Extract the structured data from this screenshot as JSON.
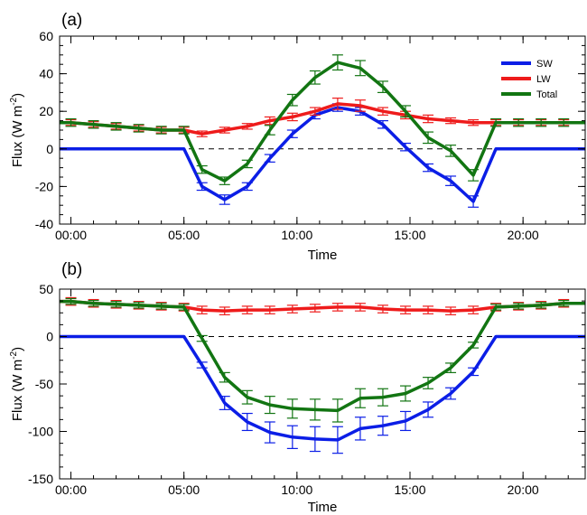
{
  "chart_data": [
    {
      "type": "line",
      "panel_label": "(a)",
      "xlabel": "Time",
      "ylabel": "Flux (W m",
      "ylabel_sup": "-2",
      "ylabel_close": ")",
      "xlim": [
        -0.5,
        22.75
      ],
      "ylim": [
        -40,
        60
      ],
      "yticks": [
        -40,
        -20,
        0,
        20,
        40,
        60
      ],
      "xticks": [
        0,
        5,
        10,
        15,
        20
      ],
      "xtick_labels": [
        "00:00",
        "05:00",
        "10:00",
        "15:00",
        "20:00"
      ],
      "zero_line": true,
      "legend": "top-right",
      "x": [
        -0.5,
        0,
        1,
        2,
        3,
        4,
        5,
        5.8,
        6.8,
        7.8,
        8.8,
        9.8,
        10.8,
        11.8,
        12.8,
        13.8,
        14.8,
        15.8,
        16.8,
        17.8,
        18.8,
        19.8,
        20.8,
        21.8,
        22.75
      ],
      "series": [
        {
          "name": "SW",
          "color": "#0b1ee6",
          "values": [
            0,
            0,
            0,
            0,
            0,
            0,
            0,
            -20,
            -27,
            -20,
            -5,
            8,
            18,
            22,
            20,
            13,
            1,
            -10,
            -17,
            -28,
            0,
            0,
            0,
            0,
            0
          ],
          "errors": [
            null,
            null,
            null,
            null,
            null,
            null,
            null,
            2,
            2.5,
            2,
            2,
            2,
            2,
            2,
            2,
            2,
            2,
            2,
            2.5,
            3,
            null,
            null,
            null,
            null,
            null
          ]
        },
        {
          "name": "LW",
          "color": "#ee1b1b",
          "values": [
            14,
            14,
            13,
            12,
            11,
            10,
            10,
            8,
            10,
            12,
            15,
            17,
            20,
            24,
            23,
            20,
            18,
            16,
            15,
            14,
            14,
            14,
            14,
            14,
            14
          ],
          "errors": [
            null,
            1.5,
            1.5,
            1.5,
            1.5,
            1.5,
            1.5,
            1.5,
            1.5,
            1.5,
            2,
            2,
            2,
            3,
            3,
            2,
            2,
            2,
            1.5,
            1.5,
            1.5,
            1.5,
            1.5,
            1.5,
            null
          ]
        },
        {
          "name": "Total",
          "color": "#127512",
          "values": [
            14,
            14,
            13,
            12,
            11,
            10,
            10,
            -11,
            -17,
            -8,
            10,
            26,
            38,
            46,
            43,
            33,
            20,
            6,
            -1,
            -14,
            14,
            14,
            14,
            14,
            14
          ],
          "errors": [
            null,
            2,
            2,
            2,
            2,
            2,
            2,
            2,
            2,
            2,
            2.5,
            3,
            3.5,
            4,
            4,
            3,
            3,
            3,
            3,
            3,
            2,
            2,
            2,
            2,
            null
          ]
        }
      ]
    },
    {
      "type": "line",
      "panel_label": "(b)",
      "xlabel": "Time",
      "ylabel": "Flux (W m",
      "ylabel_sup": "-2",
      "ylabel_close": ")",
      "xlim": [
        -0.5,
        22.75
      ],
      "ylim": [
        -150,
        50
      ],
      "yticks": [
        -150,
        -100,
        -50,
        0,
        50
      ],
      "xticks": [
        0,
        5,
        10,
        15,
        20
      ],
      "xtick_labels": [
        "00:00",
        "05:00",
        "10:00",
        "15:00",
        "20:00"
      ],
      "zero_line": true,
      "x": [
        -0.5,
        0,
        1,
        2,
        3,
        4,
        5,
        5.8,
        6.8,
        7.8,
        8.8,
        9.8,
        10.8,
        11.8,
        12.8,
        13.8,
        14.8,
        15.8,
        16.8,
        17.8,
        18.8,
        19.8,
        20.8,
        21.8,
        22.75
      ],
      "series": [
        {
          "name": "SW",
          "color": "#0b1ee6",
          "values": [
            0,
            0,
            0,
            0,
            0,
            0,
            0,
            -30,
            -70,
            -90,
            -101,
            -106,
            -108,
            -109,
            -97,
            -94,
            -89,
            -77,
            -60,
            -37,
            0,
            0,
            0,
            0,
            0
          ],
          "errors": [
            null,
            null,
            null,
            null,
            null,
            null,
            null,
            3,
            7,
            9,
            11,
            12,
            13,
            14,
            12,
            10,
            10,
            8,
            6,
            4,
            null,
            null,
            null,
            null,
            null
          ]
        },
        {
          "name": "LW",
          "color": "#ee1b1b",
          "values": [
            37,
            37,
            35,
            34,
            33,
            32,
            31,
            28,
            27,
            28,
            28,
            29,
            30,
            31,
            31,
            29,
            28,
            28,
            27,
            28,
            31,
            32,
            33,
            35,
            35
          ],
          "errors": [
            null,
            4,
            4,
            4,
            4,
            4,
            4,
            4,
            4,
            4,
            4,
            4,
            4,
            4,
            4,
            4,
            4,
            4,
            4,
            4,
            4,
            4,
            4,
            4,
            null
          ]
        },
        {
          "name": "Total",
          "color": "#127512",
          "values": [
            37,
            37,
            35,
            34,
            33,
            32,
            31,
            -2,
            -43,
            -64,
            -72,
            -76,
            -77,
            -78,
            -65,
            -64,
            -60,
            -49,
            -33,
            -9,
            31,
            32,
            33,
            35,
            35
          ],
          "errors": [
            null,
            3,
            3,
            3,
            3,
            3,
            3,
            3,
            5,
            7,
            9,
            10,
            11,
            12,
            10,
            9,
            8,
            6,
            5,
            3,
            3,
            3,
            3,
            3,
            null
          ]
        }
      ]
    }
  ]
}
